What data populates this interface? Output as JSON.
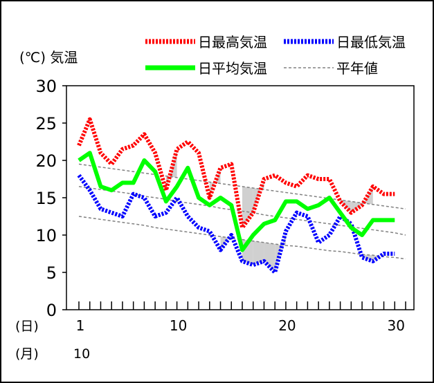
{
  "chart_data": {
    "type": "line",
    "ylabel": "(℃) 気温",
    "ylim": [
      0,
      30
    ],
    "yticks": [
      0,
      5,
      10,
      15,
      20,
      25,
      30
    ],
    "xlim": [
      1,
      31
    ],
    "xticks": [
      1,
      10,
      20,
      30
    ],
    "x_day_label": "(日)",
    "x_month_label": "(月)",
    "month": "10",
    "days": [
      1,
      2,
      3,
      4,
      5,
      6,
      7,
      8,
      9,
      10,
      11,
      12,
      13,
      14,
      15,
      16,
      17,
      18,
      19,
      20,
      21,
      22,
      23,
      24,
      25,
      26,
      27,
      28,
      29,
      30,
      31
    ],
    "series": [
      {
        "name": "日最高気温",
        "color": "#ff0000",
        "style": "dotted",
        "values": [
          22,
          25.5,
          21,
          19.5,
          21.5,
          22,
          23.5,
          21,
          16,
          21.5,
          22.5,
          21,
          15,
          19,
          19.5,
          11,
          13,
          17.5,
          18,
          17,
          16.5,
          18,
          17.5,
          17.5,
          14.5,
          13,
          14,
          16.5,
          15.5,
          15.5,
          null
        ]
      },
      {
        "name": "日最低気温",
        "color": "#0000ff",
        "style": "dotted",
        "values": [
          18,
          16,
          13.5,
          13,
          12.5,
          15.5,
          15,
          12.5,
          13,
          15,
          12.5,
          11,
          10.5,
          8,
          10,
          6.5,
          6,
          6.5,
          5,
          10.5,
          13,
          12.5,
          9,
          10,
          12.5,
          11.5,
          7,
          6.5,
          7.5,
          7.5,
          null
        ]
      },
      {
        "name": "日平均気温",
        "color": "#00ff00",
        "style": "solid",
        "values": [
          20,
          21,
          16.5,
          16,
          17,
          17,
          20,
          18.5,
          14.5,
          16.5,
          19,
          15,
          14,
          15,
          14,
          8,
          10,
          11.5,
          12,
          14.5,
          14.5,
          13.5,
          14,
          15,
          13,
          11,
          10,
          12,
          12,
          12,
          null
        ]
      },
      {
        "name": "平年値",
        "color": "#808080",
        "style": "dashed",
        "bands": {
          "high": [
            19.5,
            19.3,
            19.1,
            18.9,
            18.7,
            18.5,
            18.3,
            18.1,
            17.9,
            17.7,
            17.5,
            17.3,
            17.1,
            16.9,
            16.7,
            16.5,
            16.3,
            16.1,
            15.9,
            15.7,
            15.5,
            15.3,
            15.1,
            14.9,
            14.7,
            14.5,
            14.3,
            14.1,
            13.9,
            13.7,
            13.5
          ],
          "mean": [
            16.5,
            16.3,
            16.1,
            15.9,
            15.7,
            15.5,
            15.2,
            15.0,
            14.8,
            14.5,
            14.3,
            14.1,
            13.9,
            13.6,
            13.4,
            13.2,
            13.0,
            12.7,
            12.5,
            12.3,
            12.1,
            11.9,
            11.7,
            11.5,
            11.3,
            11.1,
            10.9,
            10.7,
            10.5,
            10.3,
            10.0
          ]
        },
        "low": [
          12.5,
          12.3,
          12.1,
          11.9,
          11.7,
          11.5,
          11.3,
          11.0,
          10.8,
          10.6,
          10.4,
          10.2,
          10.0,
          9.8,
          9.6,
          9.4,
          9.2,
          9.0,
          8.8,
          8.6,
          8.5,
          8.3,
          8.1,
          7.9,
          7.8,
          7.6,
          7.4,
          7.3,
          7.1,
          7.0,
          6.8
        ]
      }
    ],
    "legend_position": "top"
  },
  "legend": [
    {
      "label": "日最高気温",
      "color": "#ff0000",
      "style": "dotted"
    },
    {
      "label": "日最低気温",
      "color": "#0000ff",
      "style": "dotted"
    },
    {
      "label": "日平均気温",
      "color": "#00ff00",
      "style": "solid"
    },
    {
      "label": "平年値",
      "color": "#808080",
      "style": "dashed"
    }
  ]
}
